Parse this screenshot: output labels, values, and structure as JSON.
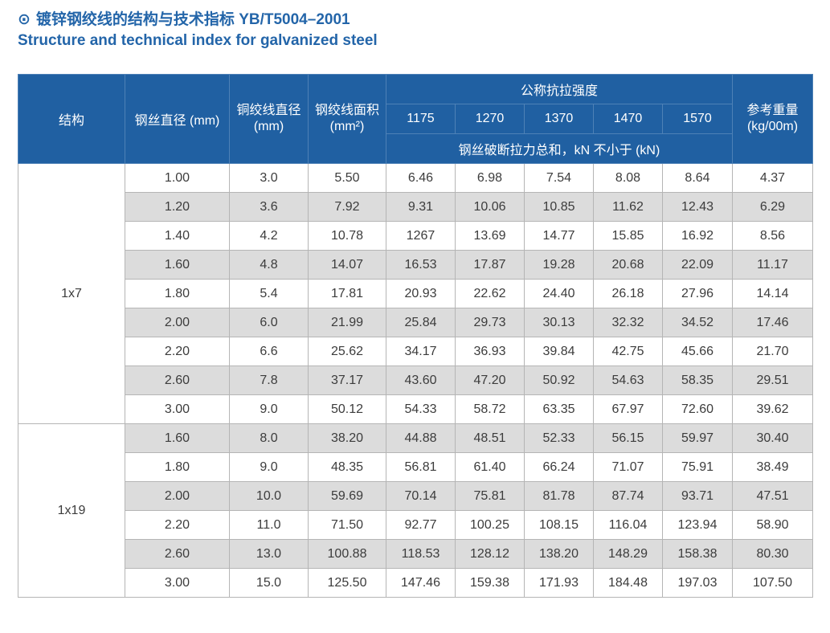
{
  "title": {
    "icon": "⊙",
    "line1": "镀锌钢绞线的结构与技术指标 YB/T5004–2001",
    "line2": "Structure and technical index for galvanized steel"
  },
  "table": {
    "headers": {
      "structure": "结构",
      "wire_diameter": "钢丝直径 (mm)",
      "strand_diameter": "铜绞线直径\n(mm)",
      "strand_area": "钢绞线面积\n(mm²)",
      "tensile_group": "公称抗拉强度",
      "tensile_values": [
        "1175",
        "1270",
        "1370",
        "1470",
        "1570"
      ],
      "breaking_note": "钢丝破断拉力总和，kN 不小于 (kN)",
      "ref_weight": "参考重量\n(kg/00m)"
    },
    "groups": [
      {
        "structure": "1x7",
        "rows": [
          [
            "1.00",
            "3.0",
            "5.50",
            "6.46",
            "6.98",
            "7.54",
            "8.08",
            "8.64",
            "4.37"
          ],
          [
            "1.20",
            "3.6",
            "7.92",
            "9.31",
            "10.06",
            "10.85",
            "11.62",
            "12.43",
            "6.29"
          ],
          [
            "1.40",
            "4.2",
            "10.78",
            "1267",
            "13.69",
            "14.77",
            "15.85",
            "16.92",
            "8.56"
          ],
          [
            "1.60",
            "4.8",
            "14.07",
            "16.53",
            "17.87",
            "19.28",
            "20.68",
            "22.09",
            "11.17"
          ],
          [
            "1.80",
            "5.4",
            "17.81",
            "20.93",
            "22.62",
            "24.40",
            "26.18",
            "27.96",
            "14.14"
          ],
          [
            "2.00",
            "6.0",
            "21.99",
            "25.84",
            "29.73",
            "30.13",
            "32.32",
            "34.52",
            "17.46"
          ],
          [
            "2.20",
            "6.6",
            "25.62",
            "34.17",
            "36.93",
            "39.84",
            "42.75",
            "45.66",
            "21.70"
          ],
          [
            "2.60",
            "7.8",
            "37.17",
            "43.60",
            "47.20",
            "50.92",
            "54.63",
            "58.35",
            "29.51"
          ],
          [
            "3.00",
            "9.0",
            "50.12",
            "54.33",
            "58.72",
            "63.35",
            "67.97",
            "72.60",
            "39.62"
          ]
        ]
      },
      {
        "structure": "1x19",
        "rows": [
          [
            "1.60",
            "8.0",
            "38.20",
            "44.88",
            "48.51",
            "52.33",
            "56.15",
            "59.97",
            "30.40"
          ],
          [
            "1.80",
            "9.0",
            "48.35",
            "56.81",
            "61.40",
            "66.24",
            "71.07",
            "75.91",
            "38.49"
          ],
          [
            "2.00",
            "10.0",
            "59.69",
            "70.14",
            "75.81",
            "81.78",
            "87.74",
            "93.71",
            "47.51"
          ],
          [
            "2.20",
            "11.0",
            "71.50",
            "92.77",
            "100.25",
            "108.15",
            "116.04",
            "123.94",
            "58.90"
          ],
          [
            "2.60",
            "13.0",
            "100.88",
            "118.53",
            "128.12",
            "138.20",
            "148.29",
            "158.38",
            "80.30"
          ],
          [
            "3.00",
            "15.0",
            "125.50",
            "147.46",
            "159.38",
            "171.93",
            "184.48",
            "197.03",
            "107.50"
          ]
        ]
      }
    ]
  },
  "colors": {
    "header_bg": "#2060A2",
    "header_border": "#4E81B6",
    "title_text": "#2365A9",
    "stripe": "#DCDCDC",
    "border": "#B5B5B5",
    "body_text": "#3C3C3C"
  }
}
